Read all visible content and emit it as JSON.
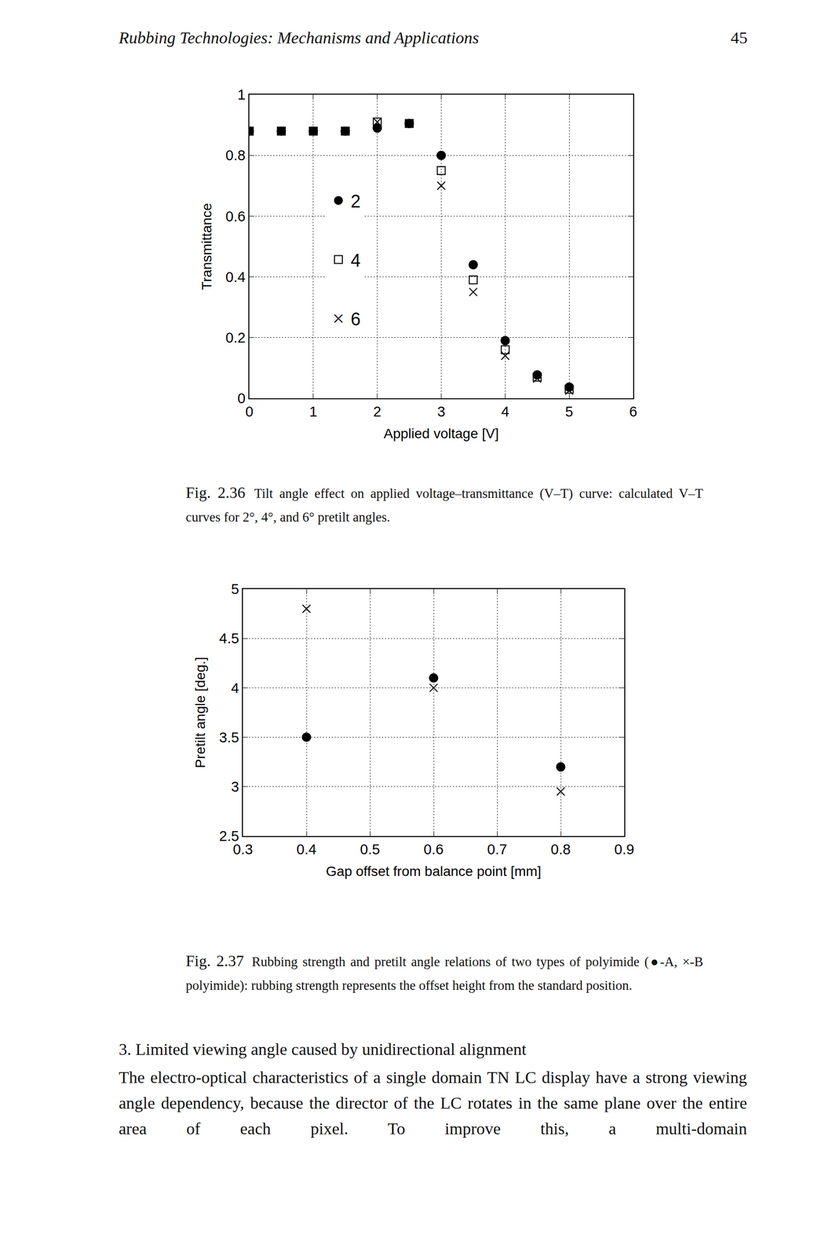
{
  "header": {
    "title": "Rubbing Technologies: Mechanisms and Applications",
    "page_number": "45"
  },
  "chart_data": [
    {
      "type": "scatter",
      "x_label": "Applied voltage [V]",
      "y_label": "Transmittance",
      "xlim": [
        0,
        6
      ],
      "ylim": [
        0,
        1
      ],
      "xticks": [
        0,
        1,
        2,
        3,
        4,
        5,
        6
      ],
      "yticks": [
        0,
        0.2,
        0.4,
        0.6,
        0.8,
        1
      ],
      "grid": true,
      "legend": "left",
      "series": [
        {
          "name": "2",
          "color": "#000000",
          "marker": "circle",
          "x": [
            0,
            0.5,
            1,
            1.5,
            2,
            2.5,
            3,
            3.5,
            4,
            4.5,
            5
          ],
          "values": [
            0.88,
            0.88,
            0.88,
            0.88,
            0.89,
            0.905,
            0.8,
            0.44,
            0.19,
            0.077,
            0.037
          ]
        },
        {
          "name": "4",
          "color": "#000000",
          "marker": "square",
          "x": [
            0,
            0.5,
            1,
            1.5,
            2,
            2.5,
            3,
            3.5,
            4,
            4.5,
            5
          ],
          "values": [
            0.88,
            0.88,
            0.88,
            0.88,
            0.91,
            0.905,
            0.75,
            0.39,
            0.16,
            0.07,
            0.03
          ]
        },
        {
          "name": "6",
          "color": "#000000",
          "marker": "x",
          "x": [
            0,
            0.5,
            1,
            1.5,
            2,
            2.5,
            3,
            3.5,
            4,
            4.5,
            5
          ],
          "values": [
            0.88,
            0.88,
            0.88,
            0.88,
            0.91,
            0.905,
            0.7,
            0.35,
            0.14,
            0.065,
            0.025
          ]
        }
      ],
      "caption": {
        "label": "Fig. 2.36",
        "text": "Tilt angle effect on applied voltage–transmittance (V–T) curve: calculated V–T curves for 2°, 4°, and 6° pretilt angles."
      }
    },
    {
      "type": "scatter",
      "x_label": "Gap offset from balance point [mm]",
      "y_label": "Pretilt angle [deg.]",
      "xlim": [
        0.3,
        0.9
      ],
      "ylim": [
        2.5,
        5
      ],
      "xticks": [
        0.3,
        0.4,
        0.5,
        0.6,
        0.7,
        0.8,
        0.9
      ],
      "yticks": [
        2.5,
        3,
        3.5,
        4,
        4.5,
        5
      ],
      "grid": true,
      "series": [
        {
          "color": "#000000",
          "marker": "circle",
          "x": [
            0.4,
            0.6,
            0.8
          ],
          "values": [
            3.5,
            4.1,
            3.2
          ]
        },
        {
          "color": "#000000",
          "marker": "x",
          "x": [
            0.4,
            0.6,
            0.8
          ],
          "values": [
            4.8,
            4.0,
            2.95
          ]
        }
      ],
      "caption": {
        "label": "Fig. 2.37",
        "text": "Rubbing strength and pretilt angle relations of two types of polyimide (●-A, ×-B polyimide): rubbing strength represents the offset height from the standard position."
      }
    }
  ],
  "body": {
    "heading": "3. Limited viewing angle caused by unidirectional alignment",
    "paragraph": "The electro-optical characteristics of a single domain TN LC display have a strong viewing angle dependency, because the director of the LC rotates in the same plane over the entire area of each pixel. To improve this, a multi-domain"
  }
}
